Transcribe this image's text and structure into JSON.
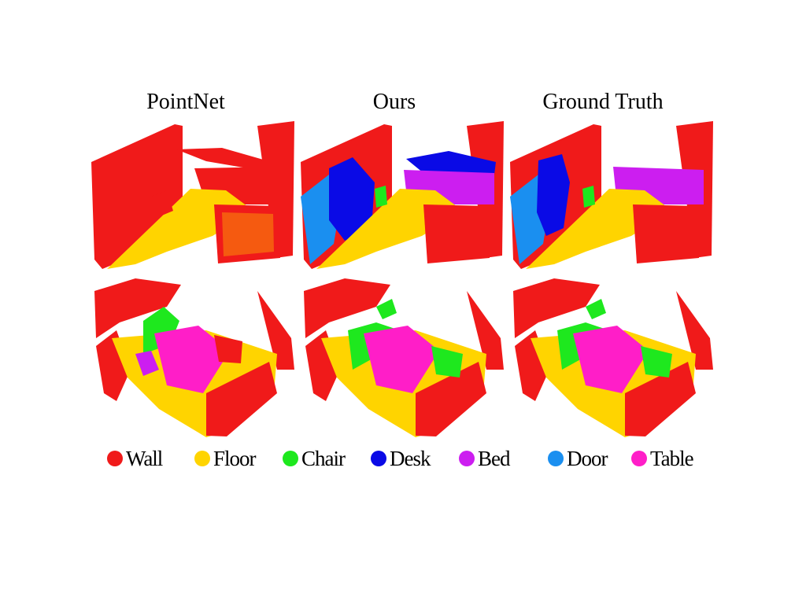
{
  "figure": {
    "columns": [
      {
        "title": "PointNet"
      },
      {
        "title": "Ours"
      },
      {
        "title": "Ground Truth"
      }
    ],
    "legend": [
      {
        "label": "Wall",
        "color": "#f01a1a"
      },
      {
        "label": "Floor",
        "color": "#ffd400"
      },
      {
        "label": "Chair",
        "color": "#1ee81e"
      },
      {
        "label": "Desk",
        "color": "#0a0ae6"
      },
      {
        "label": "Bed",
        "color": "#cc1ef0"
      },
      {
        "label": "Door",
        "color": "#1a8ff0"
      },
      {
        "label": "Table",
        "color": "#ff1ec8"
      }
    ]
  }
}
